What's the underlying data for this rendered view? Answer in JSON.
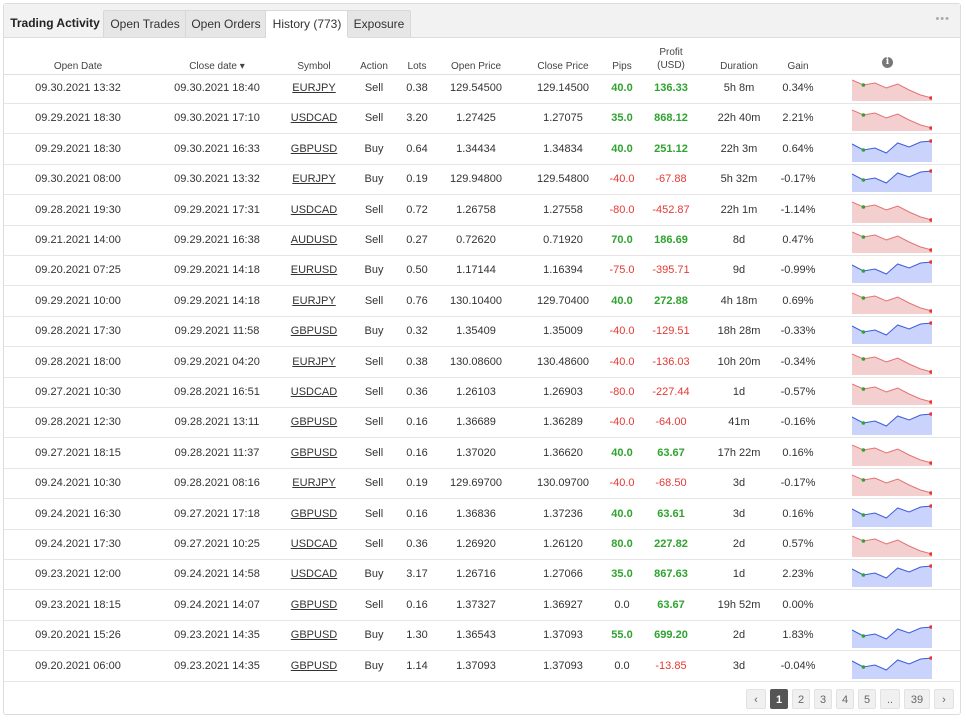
{
  "tabs": [
    {
      "label": "Trading Activity"
    },
    {
      "label": "Open Trades"
    },
    {
      "label": "Open Orders"
    },
    {
      "label": "History (773)"
    },
    {
      "label": "Exposure"
    }
  ],
  "more_label": "•••",
  "columns": {
    "open_date": "Open Date",
    "close_date": "Close date ▾",
    "symbol": "Symbol",
    "action": "Action",
    "lots": "Lots",
    "open_price": "Open Price",
    "close_price": "Close Price",
    "pips": "Pips",
    "profit_line1": "Profit",
    "profit_line2": "(USD)",
    "duration": "Duration",
    "gain": "Gain"
  },
  "info_icon": "i",
  "colors": {
    "positive": "#2fa32f",
    "negative": "#e53935",
    "up_fill": "#c9d3fb",
    "down_fill": "#f3cfd0"
  },
  "rows": [
    {
      "open": "09.30.2021 13:32",
      "close": "09.30.2021 18:40",
      "symbol": "EURJPY",
      "action": "Sell",
      "lots": "0.38",
      "open_price": "129.54500",
      "close_price": "129.14500",
      "pips": "40.0",
      "profit": "136.33",
      "duration": "5h 8m",
      "gain": "0.34%",
      "trend": "down"
    },
    {
      "open": "09.29.2021 18:30",
      "close": "09.30.2021 17:10",
      "symbol": "USDCAD",
      "action": "Sell",
      "lots": "3.20",
      "open_price": "1.27425",
      "close_price": "1.27075",
      "pips": "35.0",
      "profit": "868.12",
      "duration": "22h 40m",
      "gain": "2.21%",
      "trend": "down"
    },
    {
      "open": "09.29.2021 18:30",
      "close": "09.30.2021 16:33",
      "symbol": "GBPUSD",
      "action": "Buy",
      "lots": "0.64",
      "open_price": "1.34434",
      "close_price": "1.34834",
      "pips": "40.0",
      "profit": "251.12",
      "duration": "22h 3m",
      "gain": "0.64%",
      "trend": "up"
    },
    {
      "open": "09.30.2021 08:00",
      "close": "09.30.2021 13:32",
      "symbol": "EURJPY",
      "action": "Buy",
      "lots": "0.19",
      "open_price": "129.94800",
      "close_price": "129.54800",
      "pips": "-40.0",
      "profit": "-67.88",
      "duration": "5h 32m",
      "gain": "-0.17%",
      "trend": "up"
    },
    {
      "open": "09.28.2021 19:30",
      "close": "09.29.2021 17:31",
      "symbol": "USDCAD",
      "action": "Sell",
      "lots": "0.72",
      "open_price": "1.26758",
      "close_price": "1.27558",
      "pips": "-80.0",
      "profit": "-452.87",
      "duration": "22h 1m",
      "gain": "-1.14%",
      "trend": "down"
    },
    {
      "open": "09.21.2021 14:00",
      "close": "09.29.2021 16:38",
      "symbol": "AUDUSD",
      "action": "Sell",
      "lots": "0.27",
      "open_price": "0.72620",
      "close_price": "0.71920",
      "pips": "70.0",
      "profit": "186.69",
      "duration": "8d",
      "gain": "0.47%",
      "trend": "down"
    },
    {
      "open": "09.20.2021 07:25",
      "close": "09.29.2021 14:18",
      "symbol": "EURUSD",
      "action": "Buy",
      "lots": "0.50",
      "open_price": "1.17144",
      "close_price": "1.16394",
      "pips": "-75.0",
      "profit": "-395.71",
      "duration": "9d",
      "gain": "-0.99%",
      "trend": "up"
    },
    {
      "open": "09.29.2021 10:00",
      "close": "09.29.2021 14:18",
      "symbol": "EURJPY",
      "action": "Sell",
      "lots": "0.76",
      "open_price": "130.10400",
      "close_price": "129.70400",
      "pips": "40.0",
      "profit": "272.88",
      "duration": "4h 18m",
      "gain": "0.69%",
      "trend": "down"
    },
    {
      "open": "09.28.2021 17:30",
      "close": "09.29.2021 11:58",
      "symbol": "GBPUSD",
      "action": "Buy",
      "lots": "0.32",
      "open_price": "1.35409",
      "close_price": "1.35009",
      "pips": "-40.0",
      "profit": "-129.51",
      "duration": "18h 28m",
      "gain": "-0.33%",
      "trend": "up"
    },
    {
      "open": "09.28.2021 18:00",
      "close": "09.29.2021 04:20",
      "symbol": "EURJPY",
      "action": "Sell",
      "lots": "0.38",
      "open_price": "130.08600",
      "close_price": "130.48600",
      "pips": "-40.0",
      "profit": "-136.03",
      "duration": "10h 20m",
      "gain": "-0.34%",
      "trend": "down"
    },
    {
      "open": "09.27.2021 10:30",
      "close": "09.28.2021 16:51",
      "symbol": "USDCAD",
      "action": "Sell",
      "lots": "0.36",
      "open_price": "1.26103",
      "close_price": "1.26903",
      "pips": "-80.0",
      "profit": "-227.44",
      "duration": "1d",
      "gain": "-0.57%",
      "trend": "down"
    },
    {
      "open": "09.28.2021 12:30",
      "close": "09.28.2021 13:11",
      "symbol": "GBPUSD",
      "action": "Sell",
      "lots": "0.16",
      "open_price": "1.36689",
      "close_price": "1.36289",
      "pips": "-40.0",
      "profit": "-64.00",
      "duration": "41m",
      "gain": "-0.16%",
      "trend": "up"
    },
    {
      "open": "09.27.2021 18:15",
      "close": "09.28.2021 11:37",
      "symbol": "GBPUSD",
      "action": "Sell",
      "lots": "0.16",
      "open_price": "1.37020",
      "close_price": "1.36620",
      "pips": "40.0",
      "profit": "63.67",
      "duration": "17h 22m",
      "gain": "0.16%",
      "trend": "down"
    },
    {
      "open": "09.24.2021 10:30",
      "close": "09.28.2021 08:16",
      "symbol": "EURJPY",
      "action": "Sell",
      "lots": "0.19",
      "open_price": "129.69700",
      "close_price": "130.09700",
      "pips": "-40.0",
      "profit": "-68.50",
      "duration": "3d",
      "gain": "-0.17%",
      "trend": "down"
    },
    {
      "open": "09.24.2021 16:30",
      "close": "09.27.2021 17:18",
      "symbol": "GBPUSD",
      "action": "Sell",
      "lots": "0.16",
      "open_price": "1.36836",
      "close_price": "1.37236",
      "pips": "40.0",
      "profit": "63.61",
      "duration": "3d",
      "gain": "0.16%",
      "trend": "up"
    },
    {
      "open": "09.24.2021 17:30",
      "close": "09.27.2021 10:25",
      "symbol": "USDCAD",
      "action": "Sell",
      "lots": "0.36",
      "open_price": "1.26920",
      "close_price": "1.26120",
      "pips": "80.0",
      "profit": "227.82",
      "duration": "2d",
      "gain": "0.57%",
      "trend": "down"
    },
    {
      "open": "09.23.2021 12:00",
      "close": "09.24.2021 14:58",
      "symbol": "USDCAD",
      "action": "Buy",
      "lots": "3.17",
      "open_price": "1.26716",
      "close_price": "1.27066",
      "pips": "35.0",
      "profit": "867.63",
      "duration": "1d",
      "gain": "2.23%",
      "trend": "up"
    },
    {
      "open": "09.23.2021 18:15",
      "close": "09.24.2021 14:07",
      "symbol": "GBPUSD",
      "action": "Sell",
      "lots": "0.16",
      "open_price": "1.37327",
      "close_price": "1.36927",
      "pips": "0.0",
      "profit": "63.67",
      "duration": "19h 52m",
      "gain": "0.00%",
      "trend": "none"
    },
    {
      "open": "09.20.2021 15:26",
      "close": "09.23.2021 14:35",
      "symbol": "GBPUSD",
      "action": "Buy",
      "lots": "1.30",
      "open_price": "1.36543",
      "close_price": "1.37093",
      "pips": "55.0",
      "profit": "699.20",
      "duration": "2d",
      "gain": "1.83%",
      "trend": "up"
    },
    {
      "open": "09.20.2021 06:00",
      "close": "09.23.2021 14:35",
      "symbol": "GBPUSD",
      "action": "Buy",
      "lots": "1.14",
      "open_price": "1.37093",
      "close_price": "1.37093",
      "pips": "0.0",
      "profit": "-13.85",
      "duration": "3d",
      "gain": "-0.04%",
      "trend": "up"
    }
  ],
  "pagination": {
    "prev": "‹",
    "pages": [
      "1",
      "2",
      "3",
      "4",
      "5",
      "..",
      "39"
    ],
    "current": "1",
    "next": "›"
  }
}
